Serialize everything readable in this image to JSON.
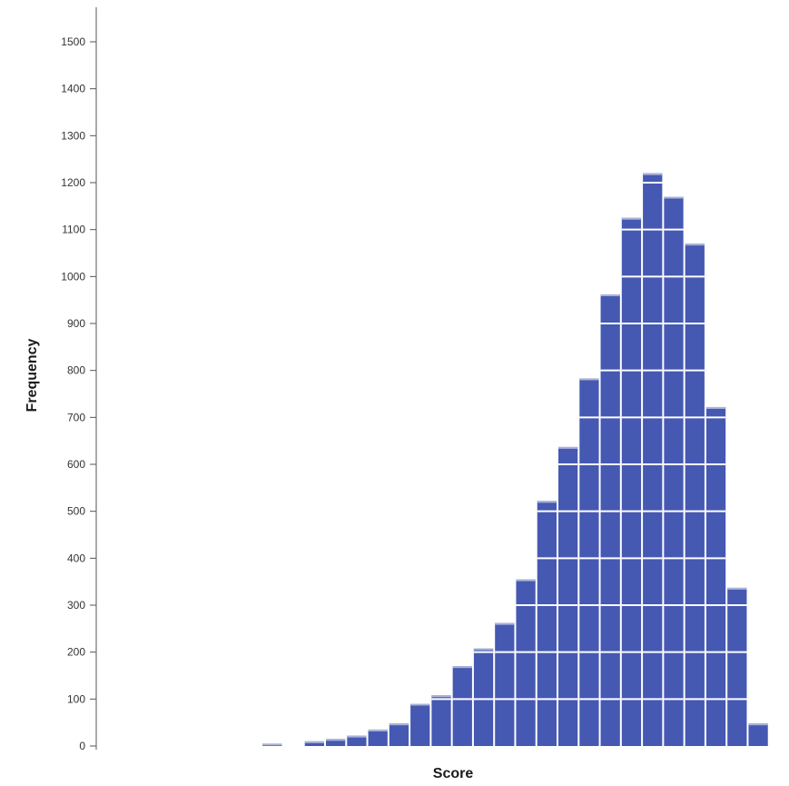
{
  "chart_data": {
    "type": "bar",
    "title": "",
    "xlabel": "Score",
    "ylabel": "Frequency",
    "ylim": [
      0,
      1560
    ],
    "yticks": [
      0,
      100,
      200,
      300,
      400,
      500,
      600,
      700,
      800,
      900,
      1000,
      1100,
      1200,
      1300,
      1400,
      1500
    ],
    "bins": 33,
    "first_bin_index": 8,
    "values": [
      5,
      0,
      10,
      15,
      22,
      35,
      48,
      90,
      108,
      170,
      208,
      262,
      355,
      522,
      637,
      783,
      962,
      1125,
      1220,
      1170,
      1070,
      722,
      337,
      48
    ],
    "grid": false,
    "legend": "none",
    "colors": {
      "bar": "#4559b2",
      "bar_highlight": "#aab3d8",
      "band_line": "#ffffff",
      "axis": "#555555"
    },
    "band_step": 100
  }
}
